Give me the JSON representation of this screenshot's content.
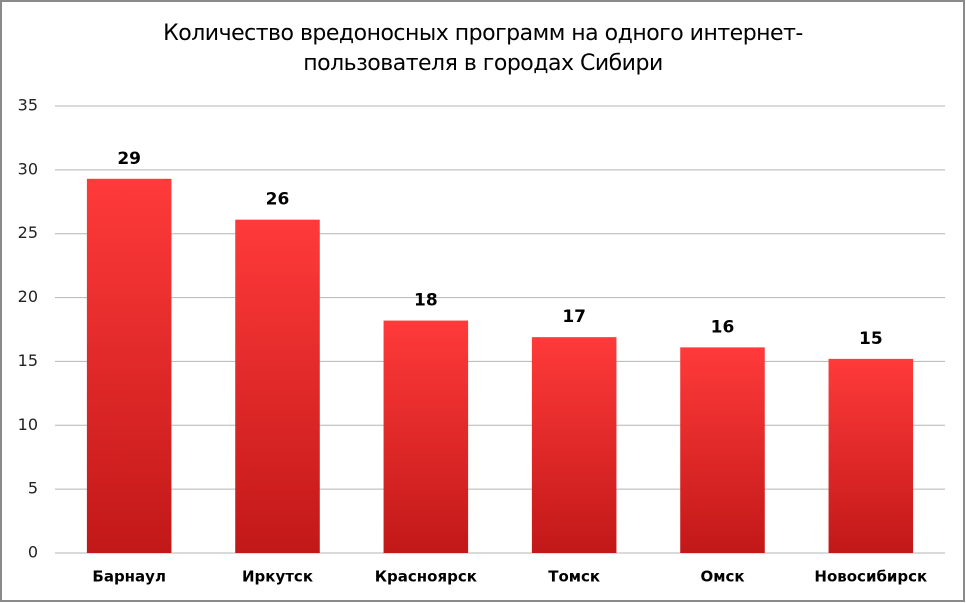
{
  "chart_data": {
    "type": "bar",
    "title": [
      "Количество вредоносных программ на одного интернет-",
      "пользователя в городах Сибири"
    ],
    "categories": [
      "Барнаул",
      "Иркутск",
      "Красноярск",
      "Томск",
      "Омск",
      "Новосибирск"
    ],
    "values": [
      29.3,
      26.1,
      18.2,
      16.9,
      16.1,
      15.2
    ],
    "value_labels": [
      "29",
      "26",
      "18",
      "17",
      "16",
      "15"
    ],
    "color": "#ff3a3a",
    "ylim": [
      0,
      35
    ],
    "yticks": [
      0,
      5,
      10,
      15,
      20,
      25,
      30,
      35
    ],
    "grid": true
  }
}
